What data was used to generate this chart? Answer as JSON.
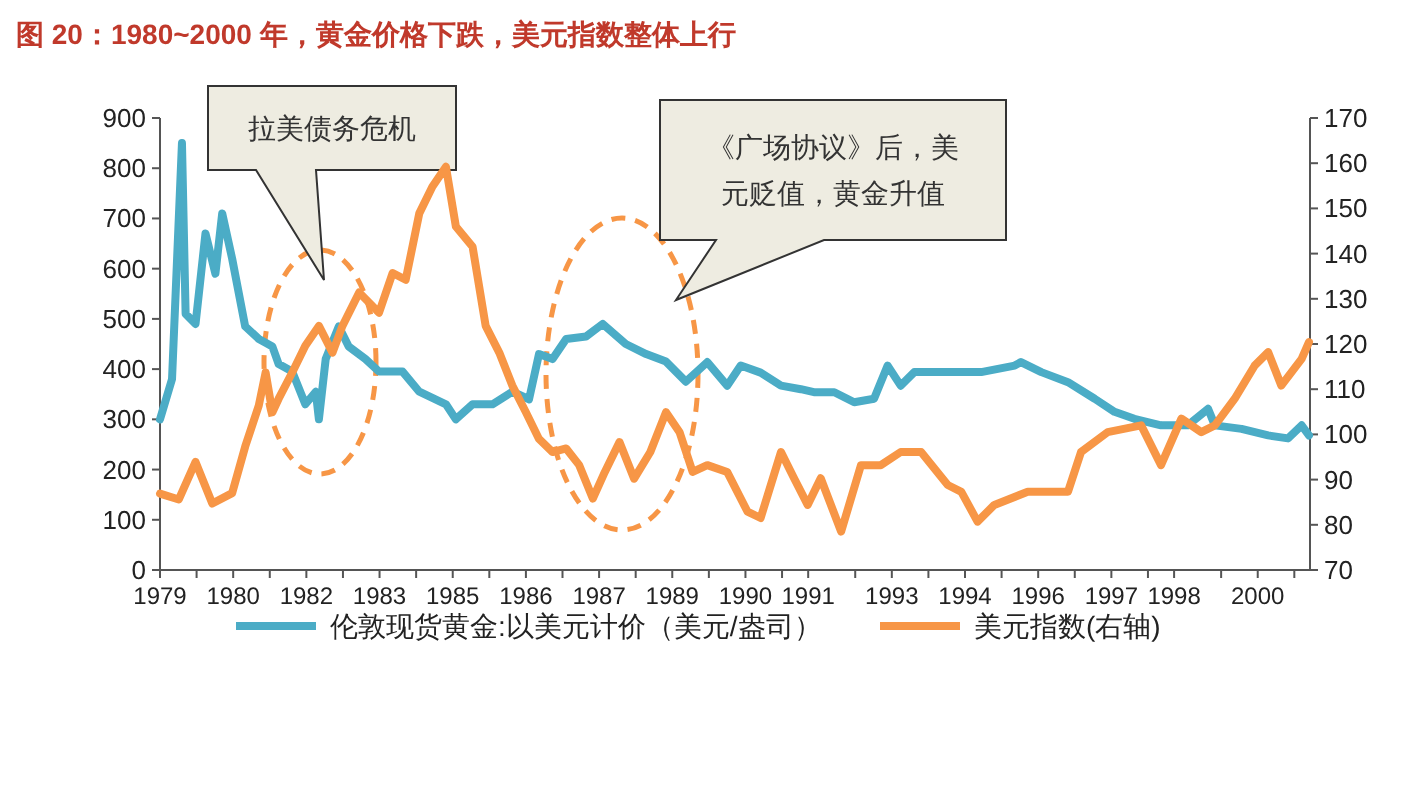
{
  "chart_data": {
    "type": "line",
    "title": "图 20：1980~2000 年，黄金价格下跌，美元指数整体上行",
    "series": [
      {
        "name": "伦敦现货黄金:以美元计价（美元/盎司）",
        "color": "#4bacc6",
        "axis": "y",
        "x": [
          1979.0,
          1979.23,
          1979.42,
          1979.49,
          1979.68,
          1979.87,
          1980.06,
          1980.19,
          1980.38,
          1980.63,
          1980.89,
          1981.15,
          1981.27,
          1981.53,
          1981.78,
          1981.98,
          1982.04,
          1982.17,
          1982.42,
          1982.61,
          1982.93,
          1983.19,
          1983.64,
          1983.96,
          1984.47,
          1984.66,
          1984.98,
          1985.36,
          1985.74,
          1986.06,
          1986.25,
          1986.51,
          1986.77,
          1987.15,
          1987.47,
          1987.91,
          1988.3,
          1988.68,
          1989.06,
          1989.47,
          1989.85,
          1990.11,
          1990.49,
          1990.88,
          1991.26,
          1991.51,
          1991.9,
          1992.28,
          1992.66,
          1992.92,
          1993.17,
          1993.43,
          1994.07,
          1994.71,
          1995.35,
          1995.47,
          1995.86,
          1996.37,
          1996.88,
          1997.26,
          1997.64,
          1998.15,
          1998.66,
          1999.05,
          1999.18,
          1999.69,
          2000.2,
          2000.58,
          2000.84,
          2000.98
        ],
        "values": [
          300,
          380,
          850,
          510,
          490,
          670,
          590,
          710,
          620,
          485,
          460,
          445,
          410,
          395,
          330,
          355,
          300,
          420,
          485,
          445,
          420,
          395,
          395,
          355,
          330,
          300,
          330,
          330,
          355,
          340,
          430,
          420,
          460,
          465,
          490,
          450,
          430,
          415,
          375,
          414,
          367,
          407,
          393,
          367,
          360,
          354,
          354,
          334,
          341,
          407,
          367,
          394,
          394,
          394,
          407,
          414,
          394,
          374,
          341,
          315,
          301,
          288,
          288,
          321,
          288,
          281,
          268,
          262,
          288,
          268
        ]
      },
      {
        "name": "美元指数(右轴)",
        "color": "#f79646",
        "axis": "y2",
        "x": [
          1979.0,
          1979.36,
          1979.68,
          1980.0,
          1980.38,
          1980.63,
          1980.89,
          1981.02,
          1981.15,
          1981.27,
          1981.53,
          1981.78,
          1982.04,
          1982.3,
          1982.49,
          1982.81,
          1983.19,
          1983.45,
          1983.7,
          1983.96,
          1984.21,
          1984.47,
          1984.66,
          1984.98,
          1985.23,
          1985.49,
          1985.74,
          1986.0,
          1986.25,
          1986.51,
          1986.77,
          1987.02,
          1987.28,
          1987.51,
          1987.79,
          1988.07,
          1988.38,
          1988.68,
          1988.94,
          1989.19,
          1989.47,
          1989.85,
          1990.24,
          1990.49,
          1990.88,
          1991.13,
          1991.39,
          1991.64,
          1992.03,
          1992.41,
          1992.79,
          1993.17,
          1993.56,
          1994.07,
          1994.33,
          1994.64,
          1994.96,
          1995.6,
          1996.11,
          1996.37,
          1996.62,
          1997.13,
          1997.77,
          1998.15,
          1998.54,
          1998.92,
          1999.18,
          1999.56,
          1999.94,
          2000.2,
          2000.45,
          2000.84,
          2000.98
        ],
        "values": [
          86.9,
          85.6,
          93.9,
          84.7,
          87.0,
          97.3,
          106.4,
          113.7,
          104.9,
          107.9,
          113.7,
          119.6,
          124.0,
          118.1,
          124.0,
          131.4,
          126.9,
          135.7,
          134.2,
          148.9,
          154.8,
          159.2,
          146.0,
          141.5,
          124.0,
          118.1,
          110.8,
          104.9,
          99.0,
          96.1,
          96.9,
          93.2,
          85.8,
          91.7,
          98.3,
          90.2,
          96.1,
          104.9,
          100.5,
          91.7,
          93.2,
          91.7,
          82.9,
          81.5,
          96.1,
          90.3,
          84.4,
          90.3,
          78.5,
          93.2,
          93.2,
          96.1,
          96.1,
          88.8,
          87.3,
          80.7,
          84.4,
          87.3,
          87.3,
          87.3,
          96.1,
          100.5,
          102.0,
          93.2,
          103.5,
          100.5,
          102.0,
          107.9,
          115.2,
          118.2,
          110.8,
          116.7,
          120.4
        ]
      }
    ],
    "xlim": [
      1979,
      2001
    ],
    "xticks": [
      {
        "value": 1979.0,
        "label": "1979"
      },
      {
        "value": 1979.7,
        "label": null
      },
      {
        "value": 1980.4,
        "label": "1980"
      },
      {
        "value": 1981.1,
        "label": null
      },
      {
        "value": 1981.8,
        "label": "1982"
      },
      {
        "value": 1982.5,
        "label": null
      },
      {
        "value": 1983.2,
        "label": "1983"
      },
      {
        "value": 1983.9,
        "label": null
      },
      {
        "value": 1984.6,
        "label": "1985"
      },
      {
        "value": 1985.3,
        "label": null
      },
      {
        "value": 1986.0,
        "label": "1986"
      },
      {
        "value": 1986.7,
        "label": null
      },
      {
        "value": 1987.4,
        "label": "1987"
      },
      {
        "value": 1988.1,
        "label": null
      },
      {
        "value": 1988.8,
        "label": "1989"
      },
      {
        "value": 1989.5,
        "label": null
      },
      {
        "value": 1990.2,
        "label": "1990"
      },
      {
        "value": 1990.9,
        "label": null
      },
      {
        "value": 1991.4,
        "label": "1991"
      },
      {
        "value": 1992.3,
        "label": null
      },
      {
        "value": 1993.0,
        "label": "1993"
      },
      {
        "value": 1993.7,
        "label": null
      },
      {
        "value": 1994.4,
        "label": "1994"
      },
      {
        "value": 1995.1,
        "label": null
      },
      {
        "value": 1995.8,
        "label": "1996"
      },
      {
        "value": 1996.5,
        "label": null
      },
      {
        "value": 1997.2,
        "label": "1997"
      },
      {
        "value": 1997.9,
        "label": null
      },
      {
        "value": 1998.4,
        "label": "1998"
      },
      {
        "value": 1999.3,
        "label": null
      },
      {
        "value": 2000.0,
        "label": "2000"
      },
      {
        "value": 2000.7,
        "label": null
      }
    ],
    "ylim": [
      0,
      900
    ],
    "yticks": [
      0,
      100,
      200,
      300,
      400,
      500,
      600,
      700,
      800,
      900
    ],
    "y2lim": [
      70,
      170
    ],
    "y2ticks": [
      70,
      80,
      90,
      100,
      110,
      120,
      130,
      140,
      150,
      160,
      170
    ],
    "legend": "bottom",
    "line_style": "solid",
    "annotations": [
      "拉美债务危机",
      "《广场协议》后，美元贬值，黄金升值"
    ]
  }
}
